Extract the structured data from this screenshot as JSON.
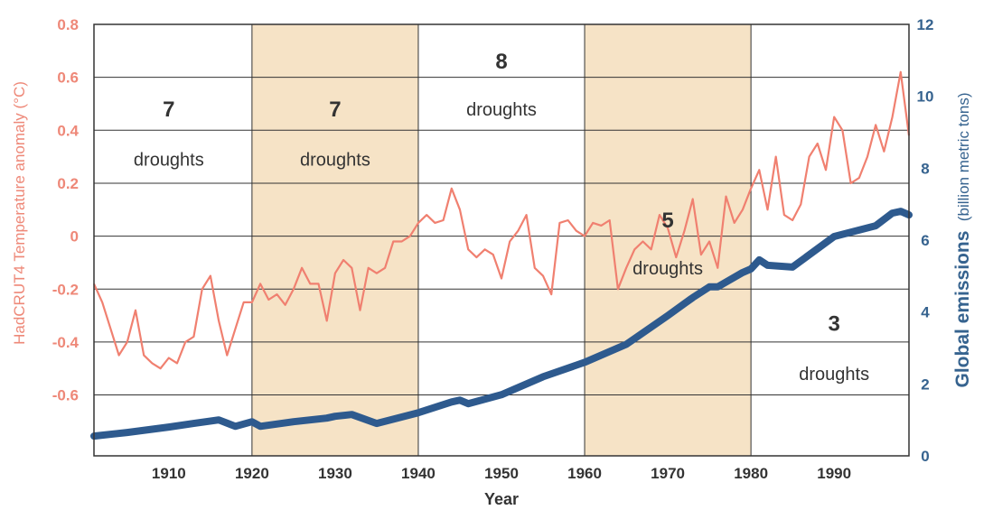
{
  "chart_data": {
    "type": "line",
    "xlabel": "Year",
    "ylabel_left": "HadCRUT4 Temperature anomaly (°C)",
    "ylabel_right": "Global emissions",
    "ylabel_right_unit": "(billion metric tons)",
    "xlim": [
      1901,
      1999
    ],
    "ylim_left": [
      -0.83,
      0.8
    ],
    "ylim_right": [
      0,
      12
    ],
    "x_ticks": [
      1910,
      1920,
      1930,
      1940,
      1950,
      1960,
      1970,
      1980,
      1990
    ],
    "y_ticks_left": [
      0.8,
      0.6,
      0.4,
      0.2,
      0,
      -0.2,
      -0.4,
      -0.6
    ],
    "y_ticks_right": [
      0,
      2,
      4,
      6,
      8,
      10,
      12
    ],
    "grid": true,
    "colors": {
      "temperature": "#f08070",
      "emissions": "#2e5a8e",
      "left_axis_text": "#ee8878",
      "right_axis_text": "#36638f",
      "shade": "#f6e3c6",
      "grid": "#333333"
    },
    "shaded_decades": [
      [
        1920,
        1940
      ],
      [
        1960,
        1980
      ]
    ],
    "drought_periods": [
      {
        "count": "7",
        "label": "droughts",
        "x": 1910,
        "y_count": 0.48,
        "y_label": 0.29
      },
      {
        "count": "7",
        "label": "droughts",
        "x": 1930,
        "y_count": 0.48,
        "y_label": 0.29
      },
      {
        "count": "8",
        "label": "droughts",
        "x": 1950,
        "y_count": 0.66,
        "y_label": 0.48
      },
      {
        "count": "5",
        "label": "droughts",
        "x": 1970,
        "y_count": 0.06,
        "y_label": -0.12
      },
      {
        "count": "3",
        "label": "droughts",
        "x": 1990,
        "y_count": -0.33,
        "y_label": -0.52
      }
    ],
    "series": [
      {
        "key": "temperature",
        "x": [
          1901,
          1902,
          1903,
          1904,
          1905,
          1906,
          1907,
          1908,
          1909,
          1910,
          1911,
          1912,
          1913,
          1914,
          1915,
          1916,
          1917,
          1918,
          1919,
          1920,
          1921,
          1922,
          1923,
          1924,
          1925,
          1926,
          1927,
          1928,
          1929,
          1930,
          1931,
          1932,
          1933,
          1934,
          1935,
          1936,
          1937,
          1938,
          1939,
          1940,
          1941,
          1942,
          1943,
          1944,
          1945,
          1946,
          1947,
          1948,
          1949,
          1950,
          1951,
          1952,
          1953,
          1954,
          1955,
          1956,
          1957,
          1958,
          1959,
          1960,
          1961,
          1962,
          1963,
          1964,
          1965,
          1966,
          1967,
          1968,
          1969,
          1970,
          1971,
          1972,
          1973,
          1974,
          1975,
          1976,
          1977,
          1978,
          1979,
          1980,
          1981,
          1982,
          1983,
          1984,
          1985,
          1986,
          1987,
          1988,
          1989,
          1990,
          1991,
          1992,
          1993,
          1994,
          1995,
          1996,
          1997,
          1998,
          1999
        ],
        "values": [
          -0.18,
          -0.25,
          -0.35,
          -0.45,
          -0.4,
          -0.28,
          -0.45,
          -0.48,
          -0.5,
          -0.46,
          -0.48,
          -0.4,
          -0.38,
          -0.2,
          -0.15,
          -0.32,
          -0.45,
          -0.35,
          -0.25,
          -0.25,
          -0.18,
          -0.24,
          -0.22,
          -0.26,
          -0.2,
          -0.12,
          -0.18,
          -0.18,
          -0.32,
          -0.14,
          -0.09,
          -0.12,
          -0.28,
          -0.12,
          -0.14,
          -0.12,
          -0.02,
          -0.02,
          0.0,
          0.05,
          0.08,
          0.05,
          0.06,
          0.18,
          0.1,
          -0.05,
          -0.08,
          -0.05,
          -0.07,
          -0.16,
          -0.02,
          0.02,
          0.08,
          -0.12,
          -0.15,
          -0.22,
          0.05,
          0.06,
          0.02,
          0.0,
          0.05,
          0.04,
          0.06,
          -0.2,
          -0.12,
          -0.05,
          -0.02,
          -0.05,
          0.08,
          0.03,
          -0.08,
          0.02,
          0.14,
          -0.07,
          -0.02,
          -0.12,
          0.15,
          0.05,
          0.1,
          0.18,
          0.25,
          0.1,
          0.3,
          0.08,
          0.06,
          0.12,
          0.3,
          0.35,
          0.25,
          0.45,
          0.4,
          0.2,
          0.22,
          0.3,
          0.42,
          0.32,
          0.45,
          0.62,
          0.38
        ]
      },
      {
        "key": "emissions",
        "x": [
          1901,
          1905,
          1910,
          1913,
          1916,
          1918,
          1920,
          1921,
          1925,
          1929,
          1930,
          1932,
          1935,
          1940,
          1944,
          1945,
          1946,
          1950,
          1955,
          1960,
          1965,
          1970,
          1973,
          1975,
          1976,
          1979,
          1980,
          1981,
          1982,
          1985,
          1990,
          1995,
          1997,
          1998,
          1999
        ],
        "values": [
          0.55,
          0.65,
          0.8,
          0.9,
          1.0,
          0.82,
          0.95,
          0.82,
          0.95,
          1.05,
          1.1,
          1.15,
          0.9,
          1.2,
          1.5,
          1.55,
          1.45,
          1.7,
          2.2,
          2.6,
          3.1,
          3.9,
          4.4,
          4.7,
          4.7,
          5.1,
          5.2,
          5.45,
          5.3,
          5.25,
          6.1,
          6.4,
          6.75,
          6.8,
          6.7
        ]
      }
    ]
  }
}
